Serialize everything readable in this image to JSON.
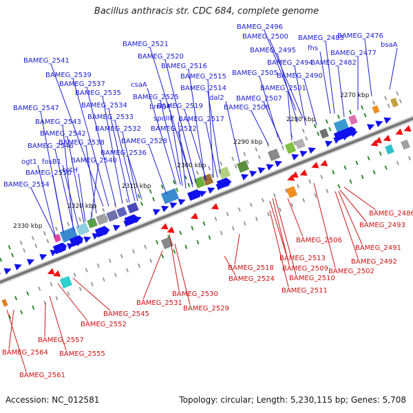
{
  "title": "Bacillus anthracis str. CDC 684, complete genome",
  "footer": {
    "accession": "Accession: NC_012581",
    "summary": "Topology: circular; Length: 5,230,115 bp; Genes: 5,708"
  },
  "colors": {
    "forward_label": "#1a1ad0",
    "reverse_label": "#cc1111",
    "forward_arrow": "#1010ee",
    "reverse_arrow": "#ee1010",
    "backbone": "#777777",
    "tick": "#2a8a2a"
  },
  "kbp_marks": [
    "2270 kbp",
    "2280 kbp",
    "2290 kbp",
    "2300 kbp",
    "2310 kbp",
    "2320 kbp",
    "2330 kbp"
  ],
  "forward_genes": [
    "BAMEG_2476",
    "bsaA",
    "BAMEG_2496",
    "BAMEG_2485",
    "BAMEG_2477",
    "BAMEG_2500",
    "fhs",
    "BAMEG_2482",
    "BAMEG_2495",
    "BAMEG_2494",
    "BAMEG_2490",
    "BAMEG_2505",
    "BAMEG_2501",
    "BAMEG_2507",
    "BAMEG_2508",
    "dal2",
    "BAMEG_2521",
    "BAMEG_2520",
    "BAMEG_2516",
    "BAMEG_2515",
    "BAMEG_2514",
    "csaA",
    "BAMEG_2525",
    "brnQ4",
    "BAMEG_2519",
    "spoIIP",
    "BAMEG_2517",
    "BAMEG_2522",
    "BAMEG_2528",
    "BAMEG_2541",
    "BAMEG_2539",
    "BAMEG_2537",
    "BAMEG_2535",
    "BAMEG_2534",
    "BAMEG_2533",
    "BAMEG_2532",
    "BAMEG_2538",
    "BAMEG_2536",
    "BAMEG_2547",
    "BAMEG_2543",
    "BAMEG_2542",
    "BAMEG_2546",
    "BAMEG_2540",
    "ogt1",
    "fosB1",
    "cotH",
    "BAMEG_2550",
    "BAMEG_2554"
  ],
  "reverse_genes": [
    "BAMEG_2486",
    "BAMEG_2493",
    "BAMEG_2491",
    "BAMEG_2492",
    "BAMEG_2506",
    "BAMEG_2502",
    "BAMEG_2513",
    "BAMEG_2509",
    "BAMEG_2510",
    "BAMEG_2518",
    "BAMEG_2511",
    "BAMEG_2524",
    "BAMEG_2530",
    "BAMEG_2531",
    "BAMEG_2529",
    "BAMEG_2545",
    "BAMEG_2552",
    "BAMEG_2557",
    "BAMEG_2555",
    "BAMEG_2564",
    "BAMEG_2561"
  ]
}
